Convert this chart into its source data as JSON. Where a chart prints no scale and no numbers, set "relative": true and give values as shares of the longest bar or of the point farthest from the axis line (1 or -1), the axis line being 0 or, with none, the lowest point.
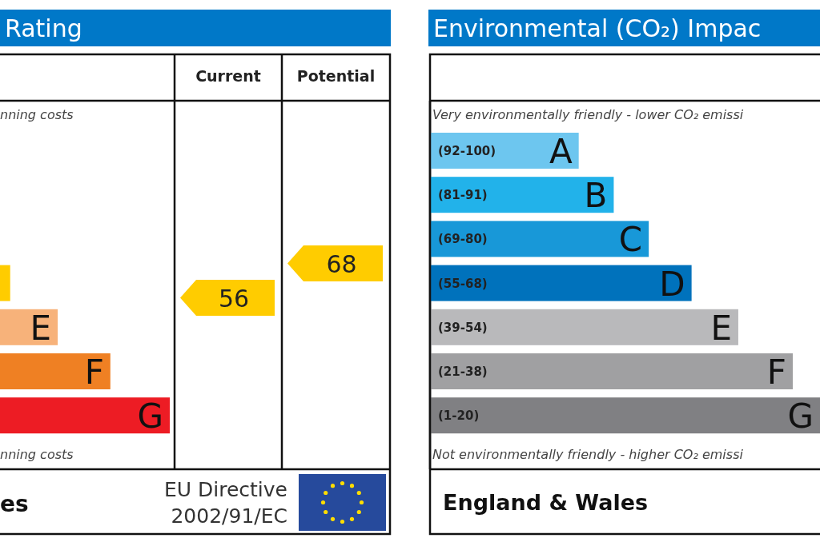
{
  "chart_data": [
    {
      "type": "bar",
      "orientation": "horizontal",
      "relative": true,
      "title": "Rating",
      "categories": [
        null,
        "E",
        "F",
        "G"
      ],
      "values": [
        0.06,
        0.34,
        0.65,
        1
      ],
      "colors": [
        "#ffcc00",
        "#f7b27a",
        "#ef8023",
        "#ed1c24"
      ],
      "annotations": [
        "nning costs",
        "nning costs",
        "es",
        "EU Directive\n2002/91/EC"
      ]
    },
    {
      "type": "other",
      "categories": [
        "Current",
        "Potential"
      ],
      "values": [
        56,
        68
      ],
      "color": "#ffcc00",
      "data_labels": true
    },
    {
      "type": "bar",
      "orientation": "horizontal",
      "relative": true,
      "title": "Environmental (CO₂) Impac",
      "categories": [
        "A",
        "B",
        "C",
        "D",
        "E",
        "F",
        "G"
      ],
      "values": [
        0.38,
        0.47,
        0.56,
        0.67,
        0.79,
        0.93,
        1
      ],
      "colors": [
        "#6dc6ef",
        "#22b2ea",
        "#1898d8",
        "#0072bc",
        "#b9b9bb",
        "#a0a0a2",
        "#808083"
      ],
      "annotations": [
        "Very environmentally friendly - lower CO₂ emissi",
        "Not environmentally friendly - higher CO₂ emissi",
        "England & Wales",
        "(92-100)",
        "(81-91)",
        "(69-80)",
        "(55-68)",
        "(39-54)",
        "(21-38)",
        "(1-20)"
      ]
    }
  ]
}
